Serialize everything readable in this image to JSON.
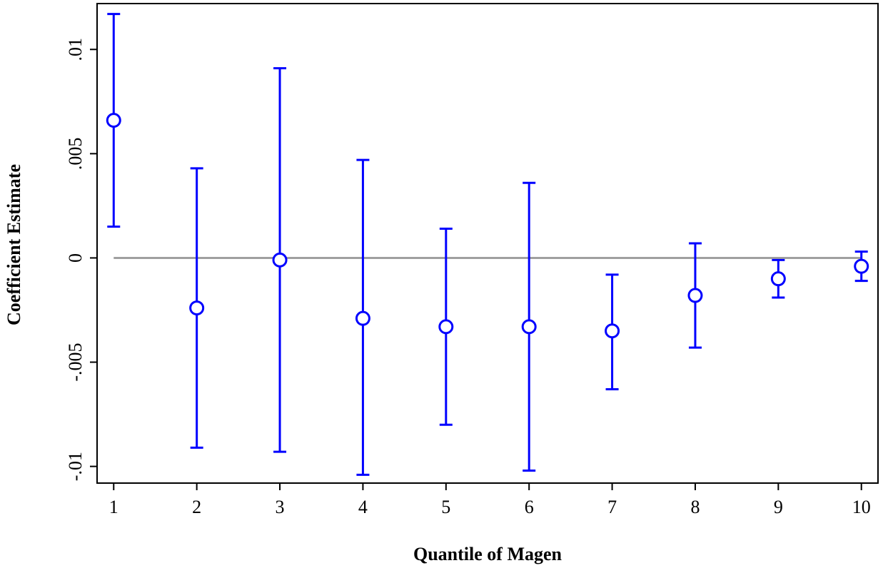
{
  "chart_data": {
    "type": "scatter",
    "title": "",
    "xlabel": "Quantile of Magen",
    "ylabel": "Coefficient Estimate",
    "x": [
      1,
      2,
      3,
      4,
      5,
      6,
      7,
      8,
      9,
      10
    ],
    "x_tick_labels": [
      "1",
      "2",
      "3",
      "4",
      "5",
      "6",
      "7",
      "8",
      "9",
      "10"
    ],
    "xlim": [
      0.8,
      10.2
    ],
    "ylim": [
      -0.0108,
      0.0122
    ],
    "y_ticks": [
      0.01,
      0.005,
      0,
      -0.005,
      -0.01
    ],
    "y_tick_labels": [
      ".01",
      ".005",
      "0",
      "-.005",
      "-.01"
    ],
    "reference_line": 0,
    "series": [
      {
        "estimate": [
          0.0066,
          -0.0024,
          -0.0001,
          -0.0029,
          -0.0033,
          -0.0033,
          -0.0035,
          -0.0018,
          -0.001,
          -0.0004
        ],
        "ci_upper": [
          0.0117,
          0.0043,
          0.0091,
          0.0047,
          0.0014,
          0.0036,
          -0.0008,
          0.0007,
          -0.0001,
          0.0003
        ],
        "ci_lower": [
          0.0015,
          -0.0091,
          -0.0093,
          -0.0104,
          -0.008,
          -0.0102,
          -0.0063,
          -0.0043,
          -0.0019,
          -0.0011
        ]
      }
    ],
    "colors": {
      "markers": "#0000ff",
      "reference_line": "#a0a0a0",
      "axes": "#000000"
    },
    "grid": false,
    "legend": "none"
  }
}
